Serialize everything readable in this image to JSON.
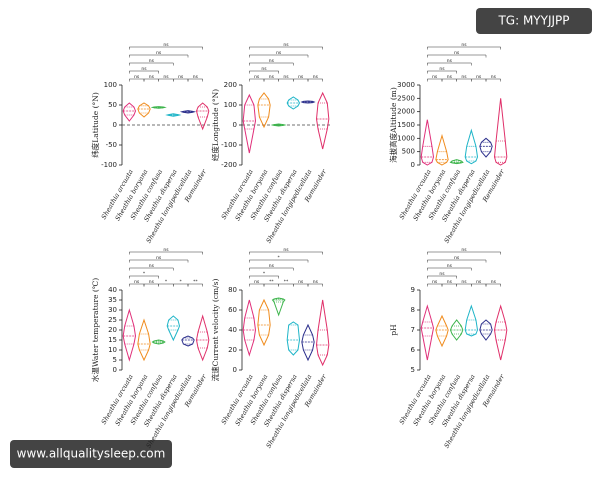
{
  "watermarks": {
    "top_right": "TG: MYYJJPP",
    "bottom_left": "www.allqualitysleep.com"
  },
  "chart_data": [
    {
      "type": "violin",
      "ylabel": "纬度Latitude (°N)",
      "categories": [
        "Sheathia arcuata",
        "Sheathia boryana",
        "Sheathia confusa",
        "Sheathia dispersa",
        "Sheathia longipedicellata",
        "Remainder"
      ],
      "colors": [
        "#e0307a",
        "#f08c1e",
        "#3cb44b",
        "#1fb5c8",
        "#2c2f8c",
        "#e0306a"
      ],
      "min": [
        10,
        20,
        42,
        22,
        30,
        -10
      ],
      "q1": [
        25,
        30,
        43,
        24,
        32,
        20
      ],
      "median": [
        35,
        40,
        44,
        25,
        33,
        35
      ],
      "q3": [
        45,
        48,
        45,
        26,
        34,
        45
      ],
      "max": [
        55,
        55,
        46,
        28,
        36,
        55
      ],
      "ylim": [
        -100,
        100
      ],
      "yticks": [
        -100,
        -50,
        0,
        50,
        100
      ],
      "refline": 0,
      "comparisons": [
        {
          "from": 0,
          "to": 1,
          "label": "ns"
        },
        {
          "from": 1,
          "to": 2,
          "label": "ns"
        },
        {
          "from": 2,
          "to": 3,
          "label": "ns"
        },
        {
          "from": 3,
          "to": 4,
          "label": "ns"
        },
        {
          "from": 4,
          "to": 5,
          "label": "ns"
        },
        {
          "from": 0,
          "to": 2,
          "label": "ns"
        },
        {
          "from": 0,
          "to": 3,
          "label": "ns"
        },
        {
          "from": 0,
          "to": 4,
          "label": "ns"
        },
        {
          "from": 0,
          "to": 5,
          "label": "ns"
        }
      ]
    },
    {
      "type": "violin",
      "ylabel": "经度Longitude (°N)",
      "categories": [
        "Sheathia arcuata",
        "Sheathia boryana",
        "Sheathia confusa",
        "Sheathia dispersa",
        "Sheathia longipedicellata",
        "Remainder"
      ],
      "colors": [
        "#e0307a",
        "#f08c1e",
        "#3cb44b",
        "#1fb5c8",
        "#2c2f8c",
        "#e0306a"
      ],
      "min": [
        -140,
        -10,
        -5,
        80,
        110,
        -120
      ],
      "q1": [
        -20,
        40,
        -2,
        95,
        112,
        -20
      ],
      "median": [
        20,
        100,
        0,
        110,
        115,
        30
      ],
      "q3": [
        100,
        130,
        2,
        125,
        118,
        110
      ],
      "max": [
        150,
        160,
        5,
        140,
        120,
        160
      ],
      "ylim": [
        -200,
        200
      ],
      "yticks": [
        -200,
        -100,
        0,
        100,
        200
      ],
      "refline": 0,
      "comparisons": [
        {
          "from": 0,
          "to": 1,
          "label": "ns"
        },
        {
          "from": 1,
          "to": 2,
          "label": "ns"
        },
        {
          "from": 2,
          "to": 3,
          "label": "ns"
        },
        {
          "from": 3,
          "to": 4,
          "label": "ns"
        },
        {
          "from": 4,
          "to": 5,
          "label": "ns"
        },
        {
          "from": 0,
          "to": 2,
          "label": "ns"
        },
        {
          "from": 0,
          "to": 3,
          "label": "ns"
        },
        {
          "from": 0,
          "to": 4,
          "label": "ns"
        },
        {
          "from": 0,
          "to": 5,
          "label": "ns"
        }
      ]
    },
    {
      "type": "violin",
      "ylabel": "海拔高度Altitude (m)",
      "categories": [
        "Sheathia arcuata",
        "Sheathia boryana",
        "Sheathia confusa",
        "Sheathia dispersa",
        "Sheathia longipedicellata",
        "Remainder"
      ],
      "colors": [
        "#e0307a",
        "#f08c1e",
        "#3cb44b",
        "#1fb5c8",
        "#2c2f8c",
        "#e0306a"
      ],
      "min": [
        0,
        0,
        50,
        50,
        300,
        0
      ],
      "q1": [
        100,
        100,
        80,
        150,
        500,
        100
      ],
      "median": [
        300,
        200,
        100,
        300,
        700,
        300
      ],
      "q3": [
        700,
        500,
        150,
        700,
        850,
        900
      ],
      "max": [
        1700,
        1100,
        200,
        1300,
        1000,
        2500
      ],
      "ylim": [
        0,
        3000
      ],
      "yticks": [
        0,
        500,
        1000,
        1500,
        2000,
        2500,
        3000
      ],
      "comparisons": [
        {
          "from": 0,
          "to": 1,
          "label": "ns"
        },
        {
          "from": 1,
          "to": 2,
          "label": "ns"
        },
        {
          "from": 2,
          "to": 3,
          "label": "ns"
        },
        {
          "from": 3,
          "to": 4,
          "label": "ns"
        },
        {
          "from": 4,
          "to": 5,
          "label": "ns"
        },
        {
          "from": 0,
          "to": 2,
          "label": "ns"
        },
        {
          "from": 0,
          "to": 3,
          "label": "ns"
        },
        {
          "from": 0,
          "to": 4,
          "label": "ns"
        },
        {
          "from": 0,
          "to": 5,
          "label": "ns"
        }
      ]
    },
    {
      "type": "violin",
      "ylabel": "水温Water temperature (℃)",
      "categories": [
        "Sheathia arcuata",
        "Sheathia boryana",
        "Sheathia confusa",
        "Sheathia dispersa",
        "Sheathia longipedicellata",
        "Remainder"
      ],
      "colors": [
        "#e0307a",
        "#f08c1e",
        "#3cb44b",
        "#1fb5c8",
        "#2c2f8c",
        "#e0306a"
      ],
      "min": [
        5,
        5,
        13,
        15,
        12,
        5
      ],
      "q1": [
        13,
        10,
        13.5,
        20,
        13,
        11
      ],
      "median": [
        17,
        13,
        14,
        22,
        15,
        15
      ],
      "q3": [
        22,
        18,
        14.5,
        25,
        16,
        19
      ],
      "max": [
        30,
        25,
        15,
        27,
        17,
        27
      ],
      "ylim": [
        0,
        40
      ],
      "yticks": [
        0,
        5,
        10,
        15,
        20,
        25,
        30,
        35,
        40
      ],
      "comparisons": [
        {
          "from": 0,
          "to": 1,
          "label": "ns"
        },
        {
          "from": 1,
          "to": 2,
          "label": "ns"
        },
        {
          "from": 2,
          "to": 3,
          "label": "*"
        },
        {
          "from": 3,
          "to": 4,
          "label": "*"
        },
        {
          "from": 4,
          "to": 5,
          "label": "**"
        },
        {
          "from": 0,
          "to": 2,
          "label": "*"
        },
        {
          "from": 0,
          "to": 3,
          "label": "ns"
        },
        {
          "from": 0,
          "to": 4,
          "label": "ns"
        },
        {
          "from": 0,
          "to": 5,
          "label": "ns"
        }
      ]
    },
    {
      "type": "violin",
      "ylabel": "流速Current velocity (cm/s)",
      "categories": [
        "Sheathia arcuata",
        "Sheathia boryana",
        "Sheathia confusa",
        "Sheathia dispersa",
        "Sheathia longipedicellata",
        "Remainder"
      ],
      "colors": [
        "#e0307a",
        "#f08c1e",
        "#3cb44b",
        "#1fb5c8",
        "#2c2f8c",
        "#e0306a"
      ],
      "min": [
        15,
        25,
        55,
        15,
        10,
        5
      ],
      "q1": [
        30,
        35,
        68,
        20,
        20,
        15
      ],
      "median": [
        40,
        45,
        70,
        30,
        28,
        25
      ],
      "q3": [
        52,
        60,
        71,
        45,
        35,
        40
      ],
      "max": [
        70,
        70,
        72,
        48,
        45,
        70
      ],
      "ylim": [
        0,
        80
      ],
      "yticks": [
        0,
        20,
        40,
        60,
        80
      ],
      "comparisons": [
        {
          "from": 0,
          "to": 1,
          "label": "ns"
        },
        {
          "from": 1,
          "to": 2,
          "label": "**"
        },
        {
          "from": 2,
          "to": 3,
          "label": "**"
        },
        {
          "from": 3,
          "to": 4,
          "label": "ns"
        },
        {
          "from": 4,
          "to": 5,
          "label": "ns"
        },
        {
          "from": 0,
          "to": 2,
          "label": "*"
        },
        {
          "from": 0,
          "to": 3,
          "label": "ns"
        },
        {
          "from": 0,
          "to": 4,
          "label": "*"
        },
        {
          "from": 0,
          "to": 5,
          "label": "ns"
        }
      ]
    },
    {
      "type": "violin",
      "ylabel": "pH",
      "categories": [
        "Sheathia arcuata",
        "Sheathia boryana",
        "Sheathia confusa",
        "Sheathia dispersa",
        "Sheathia longipedicellata",
        "Remainder"
      ],
      "colors": [
        "#e0307a",
        "#f08c1e",
        "#3cb44b",
        "#1fb5c8",
        "#2c2f8c",
        "#e0306a"
      ],
      "min": [
        5.5,
        6.2,
        6.5,
        6.7,
        6.5,
        5.5
      ],
      "q1": [
        6.7,
        6.7,
        6.8,
        6.8,
        6.8,
        6.5
      ],
      "median": [
        7.1,
        7,
        7,
        7,
        7,
        7
      ],
      "q3": [
        7.4,
        7.2,
        7.2,
        7.5,
        7.3,
        7.4
      ],
      "max": [
        8.2,
        7.7,
        7.5,
        8.2,
        7.5,
        8.2
      ],
      "ylim": [
        5,
        9
      ],
      "yticks": [
        5,
        6,
        7,
        8,
        9
      ],
      "comparisons": [
        {
          "from": 0,
          "to": 1,
          "label": "ns"
        },
        {
          "from": 1,
          "to": 2,
          "label": "ns"
        },
        {
          "from": 2,
          "to": 3,
          "label": "ns"
        },
        {
          "from": 3,
          "to": 4,
          "label": "ns"
        },
        {
          "from": 4,
          "to": 5,
          "label": "ns"
        },
        {
          "from": 0,
          "to": 2,
          "label": "ns"
        },
        {
          "from": 0,
          "to": 3,
          "label": "ns"
        },
        {
          "from": 0,
          "to": 4,
          "label": "ns"
        },
        {
          "from": 0,
          "to": 5,
          "label": "ns"
        }
      ]
    }
  ]
}
